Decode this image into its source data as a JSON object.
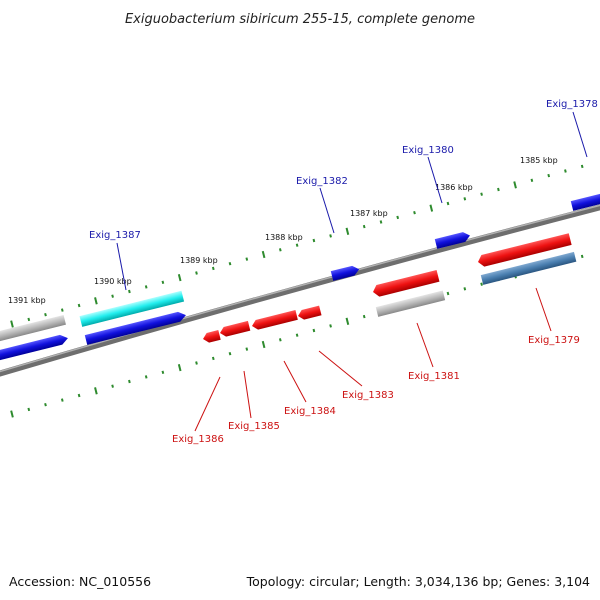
{
  "title": "Exiguobacterium sibiricum 255-15, complete genome",
  "footer": {
    "accession": "Accession: NC_010556",
    "summary": "Topology: circular; Length: 3,034,136 bp; Genes: 3,104"
  },
  "colors": {
    "backbone": "#8a8a8a",
    "tick": "#2e8b2e",
    "label_forward": "#1a1aaa",
    "label_reverse": "#cc1111",
    "gene_blue": "#1111dd",
    "gene_red": "#ee1111",
    "gene_cyan": "#22eeee",
    "gene_grey": "#b8b8b8",
    "gene_steel": "#4a7fb0"
  },
  "kbp_labels": [
    "1391 kbp",
    "1390 kbp",
    "1389 kbp",
    "1388 kbp",
    "1387 kbp",
    "1386 kbp",
    "1385 kbp"
  ],
  "gene_labels_forward": [
    "Exig_1387",
    "Exig_1382",
    "Exig_1380",
    "Exig_1378"
  ],
  "gene_labels_reverse": [
    "Exig_1386",
    "Exig_1385",
    "Exig_1384",
    "Exig_1383",
    "Exig_1381",
    "Exig_1379"
  ]
}
